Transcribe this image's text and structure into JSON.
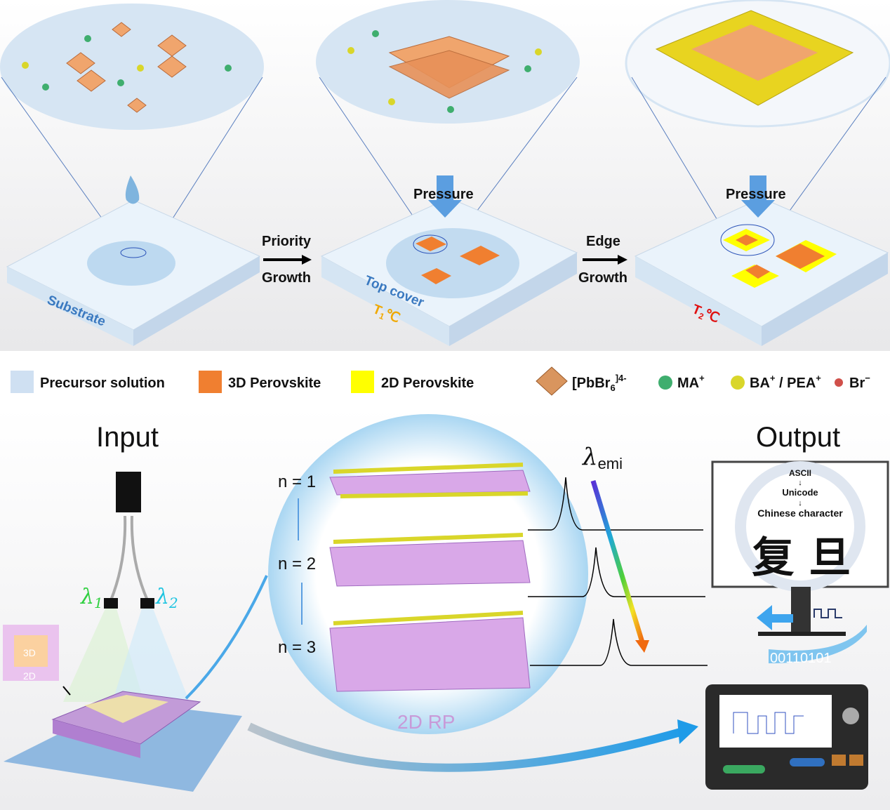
{
  "top": {
    "substrate_label": "Substrate",
    "arrow1": {
      "line1": "Priority",
      "line2": "Growth"
    },
    "top_cover_label": "Top cover",
    "t1_label": "T",
    "t1_sub": "1",
    "t1_unit": "℃",
    "pressure1": "Pressure",
    "arrow2": {
      "line1": "Edge",
      "line2": "Growth"
    },
    "pressure2": "Pressure",
    "t2_label": "T",
    "t2_sub": "2",
    "t2_unit": "℃"
  },
  "legend": {
    "items": [
      {
        "label": "Precursor solution",
        "color": "#cfe0f2"
      },
      {
        "label": "3D Perovskite",
        "color": "#f07f30"
      },
      {
        "label": "2D Perovskite",
        "color": "#ffff00"
      }
    ],
    "pbbr6": {
      "base": "[PbBr",
      "sub": "6",
      "sup": "]4-"
    },
    "ma": {
      "label": "MA",
      "sup": "+",
      "color": "#3fae6e"
    },
    "ba": {
      "label": "BA",
      "sup": "+",
      "sep": " / PEA",
      "sup2": "+",
      "color": "#d9d62a"
    },
    "br": {
      "label": "Br",
      "sup": "−",
      "color": "#d0504a"
    }
  },
  "bottom": {
    "input_title": "Input",
    "output_title": "Output",
    "lambda1": "λ",
    "lambda1_sub": "1",
    "lambda2": "λ",
    "lambda2_sub": "2",
    "chip_3d": "3D",
    "chip_2d": "2D",
    "n_labels": [
      "n = 1",
      "n = 2",
      "n = 3"
    ],
    "rp_label": "2D RP",
    "lambda_emi": "λ",
    "lambda_emi_sub": "emi",
    "monitor": {
      "line1": "ASCII",
      "line2": "Unicode",
      "line3": "Chinese character",
      "chars": "复 旦"
    },
    "binary": "00110101"
  }
}
